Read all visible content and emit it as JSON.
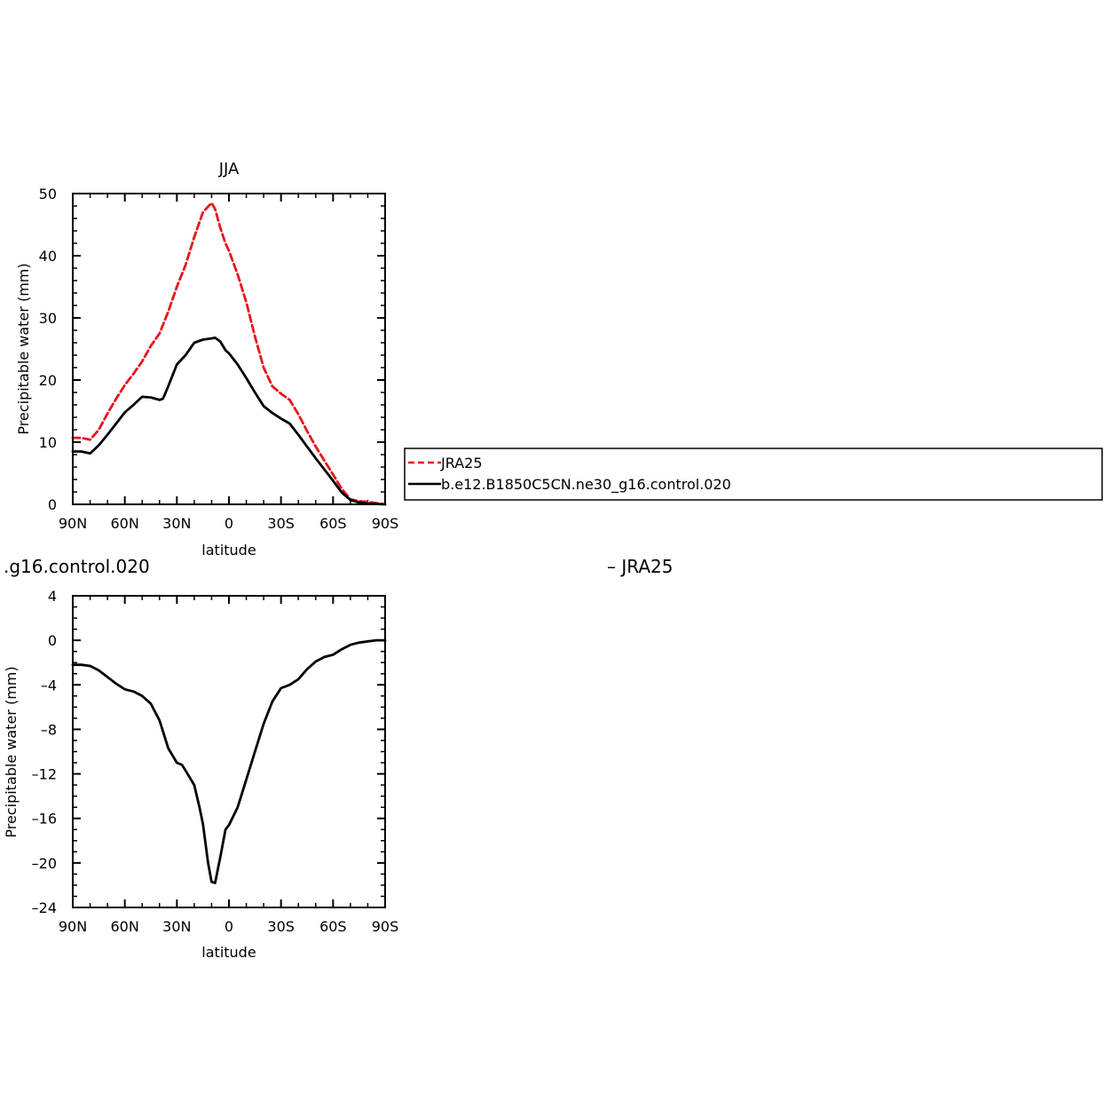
{
  "colors": {
    "jra25": "#e8141a",
    "model": "#000000",
    "axis": "#000000"
  },
  "chart_data": [
    {
      "type": "line",
      "title": "JJA",
      "xlabel": "latitude",
      "ylabel": "Precipitable water (mm)",
      "xlim": [
        90,
        -90
      ],
      "ylim": [
        0,
        50
      ],
      "yticks": [
        0,
        10,
        20,
        30,
        40,
        50
      ],
      "xticks": [
        90,
        60,
        30,
        0,
        -30,
        -60,
        -90
      ],
      "xtick_labels": [
        "90N",
        "60N",
        "30N",
        "0",
        "30S",
        "60S",
        "90S"
      ],
      "legend": {
        "placement": "right of plot",
        "entries": [
          "JRA25",
          "b.e12.B1850C5CN.ne30_g16.control.020"
        ]
      },
      "series": [
        {
          "name": "JRA25",
          "style": "dashed",
          "color": "#e8141a",
          "x": [
            90,
            85,
            80,
            75,
            70,
            65,
            60,
            55,
            50,
            45,
            40,
            35,
            30,
            25,
            20,
            15,
            10,
            8,
            5,
            2,
            0,
            -5,
            -10,
            -15,
            -20,
            -25,
            -30,
            -35,
            -40,
            -45,
            -50,
            -55,
            -60,
            -65,
            -70,
            -75,
            -80,
            -85,
            -90
          ],
          "values": [
            10.7,
            10.7,
            10.4,
            12.0,
            14.6,
            17.0,
            19.2,
            21.0,
            23.0,
            25.5,
            27.5,
            31.0,
            35.0,
            38.5,
            43.0,
            47.0,
            48.5,
            47.5,
            44.5,
            42.0,
            40.8,
            37.0,
            32.5,
            27.0,
            22.0,
            19.0,
            17.8,
            16.8,
            14.5,
            11.8,
            9.3,
            7.0,
            4.8,
            2.5,
            0.8,
            0.5,
            0.4,
            0.2,
            0.0
          ]
        },
        {
          "name": "b.e12.B1850C5CN.ne30_g16.control.020",
          "style": "solid",
          "color": "#000000",
          "x": [
            90,
            85,
            80,
            75,
            70,
            65,
            60,
            55,
            50,
            45,
            40,
            38,
            35,
            30,
            25,
            20,
            15,
            10,
            8,
            5,
            2,
            0,
            -5,
            -10,
            -15,
            -20,
            -25,
            -30,
            -35,
            -40,
            -45,
            -50,
            -55,
            -60,
            -65,
            -70,
            -75,
            -80,
            -85,
            -90
          ],
          "values": [
            8.5,
            8.5,
            8.2,
            9.5,
            11.2,
            13.0,
            14.8,
            16.0,
            17.3,
            17.2,
            16.8,
            17.0,
            19.0,
            22.5,
            24.0,
            26.0,
            26.5,
            26.7,
            26.8,
            26.2,
            24.8,
            24.3,
            22.5,
            20.3,
            18.0,
            15.8,
            14.7,
            13.8,
            13.0,
            11.2,
            9.3,
            7.4,
            5.6,
            3.8,
            1.9,
            0.7,
            0.3,
            0.1,
            0.05,
            0.0
          ]
        }
      ]
    },
    {
      "type": "line",
      "title": "",
      "left_label": ".g16.control.020",
      "right_label": "– JRA25",
      "xlabel": "latitude",
      "ylabel": "Precipitable water (mm)",
      "xlim": [
        90,
        -90
      ],
      "ylim": [
        -24,
        4
      ],
      "yticks": [
        4,
        0,
        -4,
        -8,
        -12,
        -16,
        -20,
        -24
      ],
      "ytick_labels": [
        "4",
        "0",
        "–4",
        "–8",
        "–12",
        "–16",
        "–20",
        "–24"
      ],
      "xticks": [
        90,
        60,
        30,
        0,
        -30,
        -60,
        -90
      ],
      "xtick_labels": [
        "90N",
        "60N",
        "30N",
        "0",
        "30S",
        "60S",
        "90S"
      ],
      "series": [
        {
          "style": "solid",
          "color": "#000000",
          "x": [
            90,
            85,
            80,
            75,
            70,
            65,
            60,
            55,
            50,
            45,
            40,
            35,
            30,
            27,
            25,
            20,
            17,
            15,
            12,
            10,
            8,
            5,
            2,
            0,
            -5,
            -10,
            -15,
            -20,
            -25,
            -30,
            -35,
            -40,
            -45,
            -50,
            -55,
            -60,
            -65,
            -70,
            -75,
            -80,
            -85,
            -90
          ],
          "values": [
            -2.2,
            -2.2,
            -2.3,
            -2.7,
            -3.3,
            -3.9,
            -4.4,
            -4.6,
            -5.0,
            -5.7,
            -7.2,
            -9.7,
            -11.0,
            -11.2,
            -11.7,
            -13.0,
            -15.0,
            -16.5,
            -20.0,
            -21.7,
            -21.8,
            -19.5,
            -17.0,
            -16.6,
            -15.0,
            -12.5,
            -10.0,
            -7.5,
            -5.5,
            -4.3,
            -4.0,
            -3.5,
            -2.6,
            -1.9,
            -1.5,
            -1.3,
            -0.8,
            -0.4,
            -0.2,
            -0.1,
            0.0,
            0.0
          ]
        }
      ]
    }
  ]
}
